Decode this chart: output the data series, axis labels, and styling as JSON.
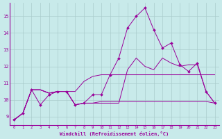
{
  "xlabel": "Windchill (Refroidissement éolien,°C)",
  "background_color": "#c8eaea",
  "grid_color": "#aacccc",
  "line_color": "#990099",
  "xlim": [
    -0.5,
    23.5
  ],
  "ylim": [
    8.5,
    15.8
  ],
  "xticks": [
    0,
    1,
    2,
    3,
    4,
    5,
    6,
    7,
    8,
    9,
    10,
    11,
    12,
    13,
    14,
    15,
    16,
    17,
    18,
    19,
    20,
    21,
    22,
    23
  ],
  "yticks": [
    9,
    10,
    11,
    12,
    13,
    14,
    15
  ],
  "series_with_markers": [
    8.8,
    9.2,
    10.6,
    9.7,
    10.3,
    10.5,
    10.5,
    9.7,
    9.8,
    10.3,
    10.3,
    11.5,
    12.5,
    14.3,
    15.0,
    15.5,
    14.2,
    13.1,
    13.4,
    12.1,
    11.7,
    12.2,
    10.5,
    9.8
  ],
  "series_flat1": [
    8.8,
    9.2,
    10.6,
    10.6,
    10.4,
    10.5,
    10.5,
    10.5,
    11.1,
    11.4,
    11.5,
    11.5,
    11.5,
    11.5,
    11.5,
    11.5,
    11.5,
    11.5,
    11.5,
    11.5,
    11.5,
    11.5,
    11.5,
    11.5
  ],
  "series_flat2": [
    8.8,
    9.2,
    10.6,
    10.6,
    10.4,
    10.5,
    10.5,
    9.7,
    9.8,
    9.8,
    9.9,
    9.9,
    9.9,
    9.9,
    9.9,
    9.9,
    9.9,
    9.9,
    9.9,
    9.9,
    9.9,
    9.9,
    9.9,
    9.8
  ],
  "series_mid": [
    8.8,
    9.2,
    10.6,
    10.6,
    10.4,
    10.5,
    10.5,
    9.7,
    9.8,
    9.8,
    9.8,
    9.8,
    9.8,
    11.8,
    12.5,
    12.0,
    11.8,
    12.5,
    12.2,
    12.0,
    12.1,
    12.1,
    10.5,
    9.8
  ]
}
